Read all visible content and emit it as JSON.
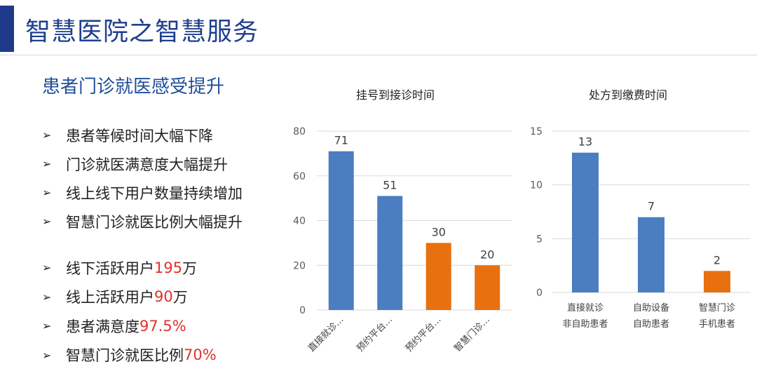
{
  "header": {
    "title": "智慧医院之智慧服务"
  },
  "left": {
    "subtitle": "患者门诊就医感受提升",
    "bullets": [
      {
        "text": "患者等候时间大幅下降"
      },
      {
        "text": "门诊就医满意度大幅提升"
      },
      {
        "text": "线上线下用户数量持续增加"
      },
      {
        "text": "智慧门诊就医比例大幅提升"
      }
    ],
    "stats": [
      {
        "prefix": "线下活跃用户",
        "value": "195",
        "suffix": "万"
      },
      {
        "prefix": "线上活跃用户",
        "value": "90",
        "suffix": "万"
      },
      {
        "prefix": "患者满意度",
        "value": "97.5%",
        "suffix": ""
      },
      {
        "prefix": "智慧门诊就医比例",
        "value": "70%",
        "suffix": ""
      }
    ]
  },
  "chart_data": [
    {
      "type": "bar",
      "title": "挂号到接诊时间",
      "categories": [
        "直接就诊…",
        "预约平台…",
        "预约平台…",
        "智慧门诊…"
      ],
      "values": [
        71,
        51,
        30,
        20
      ],
      "colors": [
        "#4a7ec0",
        "#4a7ec0",
        "#e8700f",
        "#e8700f"
      ],
      "ylim": [
        0,
        80
      ],
      "yticks": [
        0,
        20,
        40,
        60,
        80
      ],
      "grid": true
    },
    {
      "type": "bar",
      "title": "处方到缴费时间",
      "categories": [
        [
          "直接就诊",
          "非自助患者"
        ],
        [
          "自助设备",
          "自助患者"
        ],
        [
          "智慧门诊",
          "手机患者"
        ]
      ],
      "values": [
        13,
        7,
        2
      ],
      "colors": [
        "#4a7ec0",
        "#4a7ec0",
        "#e8700f"
      ],
      "ylim": [
        0,
        15
      ],
      "yticks": [
        0,
        5,
        10,
        15
      ],
      "grid": true
    }
  ]
}
